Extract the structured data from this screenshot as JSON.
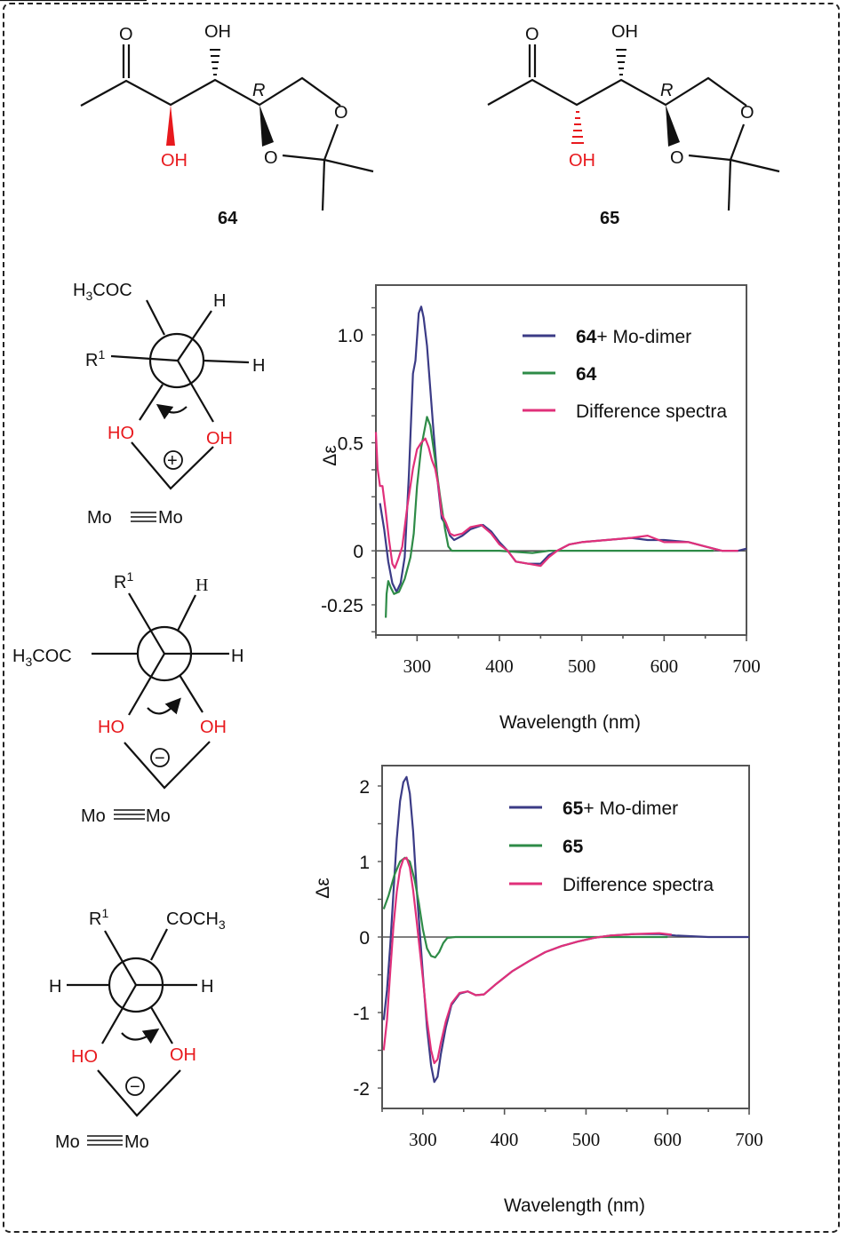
{
  "figure": {
    "compounds": [
      {
        "id": "64",
        "label": "64",
        "substituents": {
          "carbonyl_O": "O",
          "top_OH": "OH",
          "bottom_OH": "OH",
          "stereo_label": "R",
          "ring_O1": "O",
          "ring_O2": "O"
        },
        "bottom_OH_bond": "wedge"
      },
      {
        "id": "65",
        "label": "65",
        "substituents": {
          "carbonyl_O": "O",
          "top_OH": "OH",
          "bottom_OH": "OH",
          "stereo_label": "R",
          "ring_O1": "O",
          "ring_O2": "O"
        },
        "bottom_OH_bond": "hash"
      }
    ],
    "newman_projections": [
      {
        "top_left": "H3COC",
        "left": "R1",
        "top_right": "H",
        "right": "H",
        "oh_left": "HO",
        "oh_right": "OH",
        "sign": "+",
        "metal": "Mo",
        "metal2": "Mo",
        "rotation": "counterclockwise"
      },
      {
        "top_left": "R1",
        "left": "H3COC",
        "top_right": "H",
        "right": "H",
        "oh_left": "HO",
        "oh_right": "OH",
        "sign": "−",
        "metal": "Mo",
        "metal2": "Mo",
        "rotation": "clockwise"
      },
      {
        "top_left": "R1",
        "left": "H",
        "top_right": "COCH3",
        "right": "H",
        "oh_left": "HO",
        "oh_right": "OH",
        "sign": "−",
        "metal": "Mo",
        "metal2": "Mo",
        "rotation": "clockwise"
      }
    ]
  },
  "colors": {
    "mo_dimer": "#3b3b86",
    "compound": "#2e8b47",
    "difference": "#e0307a",
    "highlight_red": "#e8191d"
  },
  "chart_data": [
    {
      "type": "line",
      "title": "",
      "xlabel": "Wavelength (nm)",
      "ylabel": "Δε",
      "xlim": [
        250,
        700
      ],
      "ylim": [
        -0.39,
        1.23
      ],
      "xticks": [
        300,
        400,
        500,
        600,
        700
      ],
      "yticks": [
        {
          "v": 1.0,
          "t": "1.0"
        },
        {
          "v": 0.5,
          "t": "0.5"
        },
        {
          "v": 0,
          "t": "0"
        },
        {
          "v": -0.25,
          "t": "-0.25"
        }
      ],
      "grid": false,
      "legend_position": "upper right",
      "series": [
        {
          "name": "64+ Mo-dimer",
          "name_bold": "64",
          "name_rest": "+ Mo-dimer",
          "color": "#3b3b86",
          "points": [
            [
              255,
              0.22
            ],
            [
              260,
              0.1
            ],
            [
              265,
              -0.05
            ],
            [
              270,
              -0.15
            ],
            [
              275,
              -0.19
            ],
            [
              280,
              -0.15
            ],
            [
              285,
              -0.03
            ],
            [
              290,
              0.35
            ],
            [
              295,
              0.82
            ],
            [
              298,
              0.88
            ],
            [
              302,
              1.1
            ],
            [
              305,
              1.13
            ],
            [
              308,
              1.08
            ],
            [
              312,
              0.95
            ],
            [
              316,
              0.75
            ],
            [
              320,
              0.55
            ],
            [
              325,
              0.32
            ],
            [
              330,
              0.15
            ],
            [
              335,
              0.12
            ],
            [
              340,
              0.07
            ],
            [
              345,
              0.05
            ],
            [
              355,
              0.07
            ],
            [
              365,
              0.1
            ],
            [
              380,
              0.12
            ],
            [
              390,
              0.09
            ],
            [
              400,
              0.04
            ],
            [
              410,
              0.0
            ],
            [
              420,
              -0.05
            ],
            [
              435,
              -0.06
            ],
            [
              450,
              -0.06
            ],
            [
              460,
              -0.02
            ],
            [
              470,
              0.0
            ],
            [
              485,
              0.03
            ],
            [
              500,
              0.04
            ],
            [
              530,
              0.05
            ],
            [
              560,
              0.06
            ],
            [
              580,
              0.05
            ],
            [
              600,
              0.05
            ],
            [
              630,
              0.04
            ],
            [
              650,
              0.02
            ],
            [
              670,
              0.0
            ],
            [
              690,
              0.0
            ],
            [
              700,
              0.01
            ]
          ]
        },
        {
          "name": "64",
          "name_bold": "64",
          "name_rest": "",
          "color": "#2e8b47",
          "points": [
            [
              262,
              -0.31
            ],
            [
              263,
              -0.2
            ],
            [
              265,
              -0.14
            ],
            [
              268,
              -0.17
            ],
            [
              272,
              -0.2
            ],
            [
              278,
              -0.19
            ],
            [
              285,
              -0.13
            ],
            [
              292,
              -0.03
            ],
            [
              296,
              0.08
            ],
            [
              300,
              0.3
            ],
            [
              305,
              0.48
            ],
            [
              312,
              0.62
            ],
            [
              316,
              0.58
            ],
            [
              322,
              0.42
            ],
            [
              328,
              0.25
            ],
            [
              334,
              0.1
            ],
            [
              338,
              0.02
            ],
            [
              342,
              0.0
            ],
            [
              360,
              0.0
            ],
            [
              400,
              0.0
            ],
            [
              440,
              -0.01
            ],
            [
              460,
              0.0
            ],
            [
              500,
              0.0
            ],
            [
              560,
              0.0
            ],
            [
              600,
              0.0
            ],
            [
              630,
              0.0
            ],
            [
              660,
              0.0
            ]
          ]
        },
        {
          "name": "Difference spectra",
          "name_bold": "",
          "name_rest": "Difference spectra",
          "color": "#e0307a",
          "points": [
            [
              250,
              0.55
            ],
            [
              252,
              0.38
            ],
            [
              255,
              0.3
            ],
            [
              258,
              0.3
            ],
            [
              262,
              0.18
            ],
            [
              266,
              0.05
            ],
            [
              270,
              -0.06
            ],
            [
              273,
              -0.08
            ],
            [
              277,
              -0.04
            ],
            [
              282,
              0.02
            ],
            [
              288,
              0.2
            ],
            [
              295,
              0.38
            ],
            [
              300,
              0.47
            ],
            [
              305,
              0.5
            ],
            [
              310,
              0.52
            ],
            [
              314,
              0.48
            ],
            [
              318,
              0.42
            ],
            [
              322,
              0.38
            ],
            [
              326,
              0.3
            ],
            [
              330,
              0.17
            ],
            [
              335,
              0.13
            ],
            [
              340,
              0.08
            ],
            [
              345,
              0.07
            ],
            [
              355,
              0.08
            ],
            [
              365,
              0.11
            ],
            [
              378,
              0.12
            ],
            [
              390,
              0.08
            ],
            [
              400,
              0.03
            ],
            [
              410,
              0.0
            ],
            [
              420,
              -0.05
            ],
            [
              435,
              -0.06
            ],
            [
              450,
              -0.07
            ],
            [
              460,
              -0.03
            ],
            [
              470,
              0.0
            ],
            [
              485,
              0.03
            ],
            [
              500,
              0.04
            ],
            [
              530,
              0.05
            ],
            [
              560,
              0.06
            ],
            [
              580,
              0.07
            ],
            [
              600,
              0.04
            ],
            [
              630,
              0.04
            ],
            [
              650,
              0.02
            ],
            [
              670,
              0.0
            ],
            [
              690,
              0.0
            ]
          ]
        }
      ]
    },
    {
      "type": "line",
      "title": "",
      "xlabel": "Wavelength (nm)",
      "ylabel": "Δε",
      "xlim": [
        250,
        700
      ],
      "ylim": [
        -2.27,
        2.27
      ],
      "xticks": [
        300,
        400,
        500,
        600,
        700
      ],
      "yticks": [
        {
          "v": 2,
          "t": "2"
        },
        {
          "v": 1,
          "t": "1"
        },
        {
          "v": 0,
          "t": "0"
        },
        {
          "v": -1,
          "t": "-1"
        },
        {
          "v": -2,
          "t": "-2"
        }
      ],
      "grid": false,
      "legend_position": "upper right",
      "series": [
        {
          "name": "65+ Mo-dimer",
          "name_bold": "65",
          "name_rest": "+ Mo-dimer",
          "color": "#3b3b86",
          "points": [
            [
              252,
              -1.1
            ],
            [
              256,
              -0.7
            ],
            [
              260,
              -0.1
            ],
            [
              264,
              0.6
            ],
            [
              268,
              1.3
            ],
            [
              272,
              1.8
            ],
            [
              276,
              2.05
            ],
            [
              280,
              2.12
            ],
            [
              284,
              1.9
            ],
            [
              288,
              1.4
            ],
            [
              292,
              0.7
            ],
            [
              296,
              0.1
            ],
            [
              300,
              -0.5
            ],
            [
              305,
              -1.2
            ],
            [
              310,
              -1.7
            ],
            [
              314,
              -1.92
            ],
            [
              318,
              -1.85
            ],
            [
              322,
              -1.55
            ],
            [
              328,
              -1.2
            ],
            [
              335,
              -0.9
            ],
            [
              345,
              -0.75
            ],
            [
              355,
              -0.72
            ],
            [
              365,
              -0.77
            ],
            [
              375,
              -0.76
            ],
            [
              390,
              -0.62
            ],
            [
              410,
              -0.45
            ],
            [
              430,
              -0.32
            ],
            [
              450,
              -0.2
            ],
            [
              470,
              -0.12
            ],
            [
              490,
              -0.06
            ],
            [
              510,
              -0.01
            ],
            [
              530,
              0.02
            ],
            [
              560,
              0.04
            ],
            [
              590,
              0.04
            ],
            [
              610,
              0.02
            ],
            [
              650,
              0.0
            ],
            [
              700,
              0.0
            ]
          ]
        },
        {
          "name": "65",
          "name_bold": "65",
          "name_rest": "",
          "color": "#2e8b47",
          "points": [
            [
              252,
              0.37
            ],
            [
              258,
              0.55
            ],
            [
              265,
              0.82
            ],
            [
              272,
              1.0
            ],
            [
              278,
              1.05
            ],
            [
              284,
              1.0
            ],
            [
              290,
              0.75
            ],
            [
              295,
              0.45
            ],
            [
              300,
              0.1
            ],
            [
              305,
              -0.15
            ],
            [
              310,
              -0.25
            ],
            [
              315,
              -0.27
            ],
            [
              320,
              -0.2
            ],
            [
              325,
              -0.08
            ],
            [
              330,
              -0.01
            ],
            [
              340,
              0.0
            ],
            [
              400,
              0.0
            ],
            [
              450,
              0.0
            ],
            [
              500,
              0.0
            ],
            [
              550,
              0.0
            ],
            [
              600,
              0.0
            ]
          ]
        },
        {
          "name": "Difference spectra",
          "name_bold": "",
          "name_rest": "Difference spectra",
          "color": "#e0307a",
          "points": [
            [
              252,
              -1.5
            ],
            [
              256,
              -1.1
            ],
            [
              260,
              -0.45
            ],
            [
              264,
              0.15
            ],
            [
              268,
              0.6
            ],
            [
              272,
              0.9
            ],
            [
              276,
              1.03
            ],
            [
              280,
              1.05
            ],
            [
              284,
              0.92
            ],
            [
              288,
              0.62
            ],
            [
              292,
              0.25
            ],
            [
              296,
              -0.15
            ],
            [
              300,
              -0.55
            ],
            [
              305,
              -1.1
            ],
            [
              310,
              -1.5
            ],
            [
              314,
              -1.67
            ],
            [
              318,
              -1.62
            ],
            [
              322,
              -1.4
            ],
            [
              328,
              -1.12
            ],
            [
              335,
              -0.88
            ],
            [
              345,
              -0.74
            ],
            [
              355,
              -0.72
            ],
            [
              365,
              -0.77
            ],
            [
              375,
              -0.76
            ],
            [
              390,
              -0.62
            ],
            [
              410,
              -0.45
            ],
            [
              430,
              -0.32
            ],
            [
              450,
              -0.2
            ],
            [
              470,
              -0.12
            ],
            [
              490,
              -0.06
            ],
            [
              510,
              -0.01
            ],
            [
              530,
              0.02
            ],
            [
              560,
              0.04
            ],
            [
              590,
              0.05
            ],
            [
              605,
              0.03
            ]
          ]
        }
      ]
    }
  ]
}
